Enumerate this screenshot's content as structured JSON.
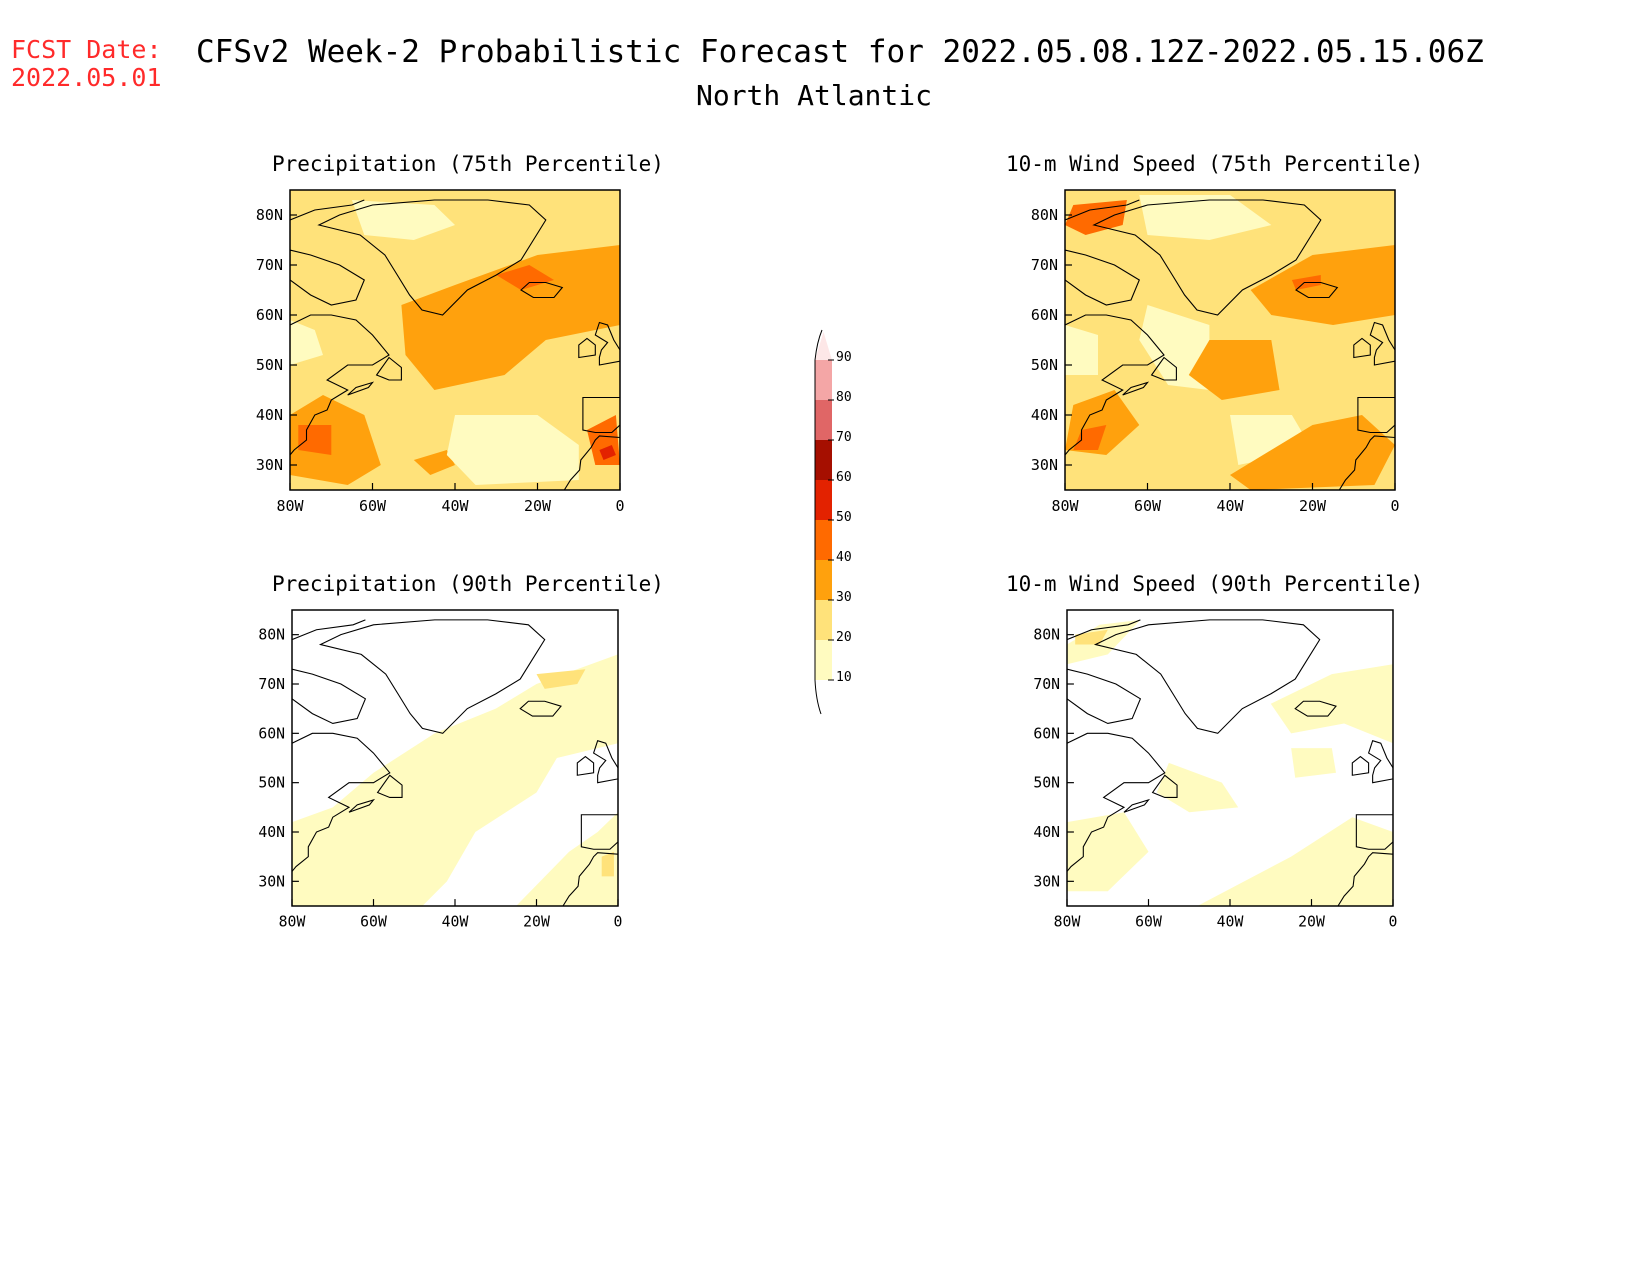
{
  "header": {
    "fcst_label": "FCST Date:",
    "fcst_date": "2022.05.01",
    "title": "CFSv2 Week-2 Probabilistic Forecast for 2022.05.08.12Z-2022.05.15.06Z",
    "region": "North Atlantic"
  },
  "axes": {
    "lat_ticks": [
      "80N",
      "70N",
      "60N",
      "50N",
      "40N",
      "30N"
    ],
    "lon_ticks": [
      "80W",
      "60W",
      "40W",
      "20W",
      "0"
    ]
  },
  "panels": [
    {
      "title": "Precipitation (75th Percentile)",
      "variable": "precipitation",
      "percentile": 75,
      "intensity": "high"
    },
    {
      "title": "10-m Wind Speed (75th Percentile)",
      "variable": "wind",
      "percentile": 75,
      "intensity": "high"
    },
    {
      "title": "Precipitation (90th Percentile)",
      "variable": "precipitation",
      "percentile": 90,
      "intensity": "low"
    },
    {
      "title": "10-m Wind Speed (90th Percentile)",
      "variable": "wind",
      "percentile": 90,
      "intensity": "low"
    }
  ],
  "colorbar": {
    "levels": [
      "10",
      "20",
      "30",
      "40",
      "50",
      "60",
      "70",
      "80",
      "90"
    ],
    "colors": [
      "#fffbc0",
      "#ffe27a",
      "#ffa10d",
      "#ff6a00",
      "#e32200",
      "#a50f00",
      "#e06666",
      "#f4a6a6",
      "#fde7e7"
    ]
  }
}
